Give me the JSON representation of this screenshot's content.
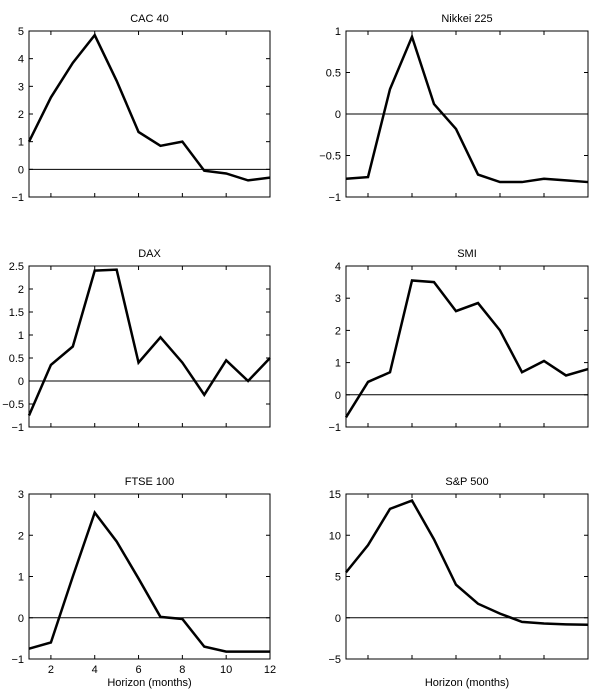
{
  "chart_data": [
    {
      "type": "line",
      "title": "CAC 40",
      "xlabel": "",
      "ylabel": "",
      "x": [
        1,
        2,
        3,
        4,
        5,
        6,
        7,
        8,
        9,
        10,
        11,
        12
      ],
      "values": [
        1.0,
        2.6,
        3.85,
        4.85,
        3.2,
        1.35,
        0.85,
        1.0,
        -0.05,
        -0.15,
        -0.4,
        -0.3
      ],
      "xlim": [
        1,
        12
      ],
      "ylim": [
        -1,
        5
      ],
      "yticks": [
        -1,
        0,
        1,
        2,
        3,
        4,
        5
      ],
      "xticks": [
        2,
        4,
        6,
        8,
        10,
        12
      ],
      "show_xtick_labels": false,
      "zero_line": true,
      "grid": false
    },
    {
      "type": "line",
      "title": "Nikkei 225",
      "xlabel": "",
      "ylabel": "",
      "x": [
        1,
        2,
        3,
        4,
        5,
        6,
        7,
        8,
        9,
        10,
        11,
        12
      ],
      "values": [
        -0.78,
        -0.76,
        0.3,
        0.93,
        0.12,
        -0.18,
        -0.73,
        -0.82,
        -0.82,
        -0.78,
        -0.8,
        -0.82
      ],
      "xlim": [
        1,
        12
      ],
      "ylim": [
        -1,
        1
      ],
      "yticks": [
        -1,
        -0.5,
        0,
        0.5,
        1
      ],
      "xticks": [
        2,
        4,
        6,
        8,
        10,
        12
      ],
      "show_xtick_labels": false,
      "zero_line": true,
      "grid": false
    },
    {
      "type": "line",
      "title": "DAX",
      "xlabel": "",
      "ylabel": "",
      "x": [
        1,
        2,
        3,
        4,
        5,
        6,
        7,
        8,
        9,
        10,
        11,
        12
      ],
      "values": [
        -0.75,
        0.35,
        0.75,
        2.4,
        2.42,
        0.4,
        0.95,
        0.4,
        -0.3,
        0.45,
        0.0,
        0.5
      ],
      "xlim": [
        1,
        12
      ],
      "ylim": [
        -1,
        2.5
      ],
      "yticks": [
        -1,
        -0.5,
        0,
        0.5,
        1,
        1.5,
        2,
        2.5
      ],
      "xticks": [
        2,
        4,
        6,
        8,
        10,
        12
      ],
      "show_xtick_labels": false,
      "zero_line": true,
      "grid": false
    },
    {
      "type": "line",
      "title": "SMI",
      "xlabel": "",
      "ylabel": "",
      "x": [
        1,
        2,
        3,
        4,
        5,
        6,
        7,
        8,
        9,
        10,
        11,
        12
      ],
      "values": [
        -0.7,
        0.4,
        0.7,
        3.55,
        3.5,
        2.6,
        2.85,
        2.0,
        0.7,
        1.05,
        0.6,
        0.8
      ],
      "xlim": [
        1,
        12
      ],
      "ylim": [
        -1,
        4
      ],
      "yticks": [
        -1,
        0,
        1,
        2,
        3,
        4
      ],
      "xticks": [
        2,
        4,
        6,
        8,
        10,
        12
      ],
      "show_xtick_labels": false,
      "zero_line": true,
      "grid": false
    },
    {
      "type": "line",
      "title": "FTSE 100",
      "xlabel": "Horizon (months)",
      "ylabel": "",
      "x": [
        1,
        2,
        3,
        4,
        5,
        6,
        7,
        8,
        9,
        10,
        11,
        12
      ],
      "values": [
        -0.75,
        -0.6,
        1.0,
        2.55,
        1.85,
        0.95,
        0.02,
        -0.03,
        -0.7,
        -0.82,
        -0.82,
        -0.82
      ],
      "xlim": [
        1,
        12
      ],
      "ylim": [
        -1,
        3
      ],
      "yticks": [
        -1,
        0,
        1,
        2,
        3
      ],
      "xticks": [
        2,
        4,
        6,
        8,
        10,
        12
      ],
      "show_xtick_labels": true,
      "zero_line": true,
      "grid": false
    },
    {
      "type": "line",
      "title": "S&P 500",
      "xlabel": "Horizon (months)",
      "ylabel": "",
      "x": [
        1,
        2,
        3,
        4,
        5,
        6,
        7,
        8,
        9,
        10,
        11,
        12
      ],
      "values": [
        5.5,
        8.8,
        13.2,
        14.2,
        9.5,
        4.0,
        1.7,
        0.5,
        -0.5,
        -0.7,
        -0.8,
        -0.85
      ],
      "xlim": [
        1,
        12
      ],
      "ylim": [
        -5,
        15
      ],
      "yticks": [
        -5,
        0,
        5,
        10,
        15
      ],
      "xticks": [
        2,
        4,
        6,
        8,
        10,
        12
      ],
      "show_xtick_labels": false,
      "zero_line": true,
      "grid": false
    }
  ]
}
